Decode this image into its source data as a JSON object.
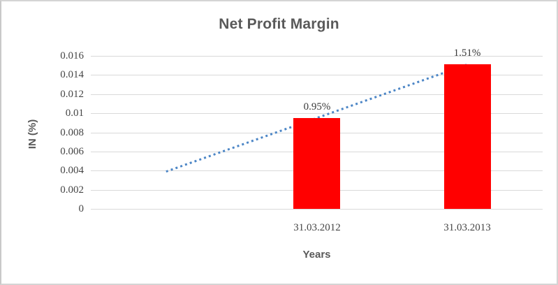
{
  "chart": {
    "title": "Net Profit Margin",
    "x_axis_title": "Years",
    "y_axis_title": "IN (%)"
  },
  "chart_data": {
    "type": "bar",
    "title": "Net Profit Margin",
    "xlabel": "Years",
    "ylabel": "IN (%)",
    "categories": [
      "31.03.2012",
      "31.03.2013"
    ],
    "values": [
      0.0095,
      0.0151
    ],
    "data_labels": [
      "0.95%",
      "1.51%"
    ],
    "ylim": [
      0,
      0.016
    ],
    "y_tick_labels": [
      "0",
      "0.002",
      "0.004",
      "0.006",
      "0.008",
      "0.01",
      "0.012",
      "0.014",
      "0.016"
    ],
    "y_tick_values": [
      0,
      0.002,
      0.004,
      0.006,
      0.008,
      0.01,
      0.012,
      0.014,
      0.016
    ],
    "grid": true,
    "legend": "none",
    "bar_color": "#ff0000",
    "label_color": "#383838",
    "title_color": "#595959",
    "gridline_color": "#d9d9d9",
    "category_slots": 3,
    "bar_slot_indices": [
      1,
      2
    ],
    "trendline": {
      "style": "dotted",
      "color": "#4c86c6",
      "points": [
        {
          "slot": 0,
          "value": 0.0039
        },
        {
          "slot": 2,
          "value": 0.0151
        }
      ]
    }
  }
}
